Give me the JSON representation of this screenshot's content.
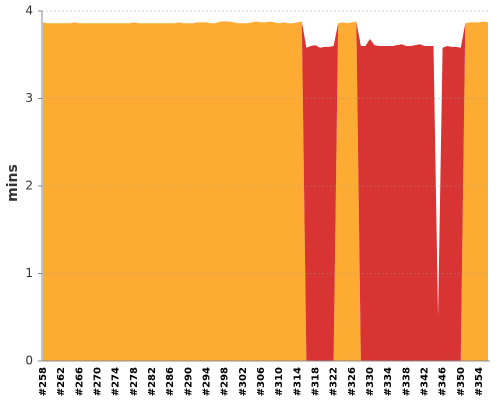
{
  "chart_data": {
    "type": "area",
    "stacked": true,
    "y_label": "mins",
    "categories": [
      "#258",
      null,
      null,
      null,
      "#262",
      null,
      null,
      null,
      "#266",
      null,
      null,
      null,
      "#270",
      null,
      null,
      null,
      "#274",
      null,
      null,
      null,
      "#278",
      null,
      null,
      null,
      "#282",
      null,
      null,
      null,
      "#286",
      null,
      null,
      null,
      "#290",
      null,
      null,
      null,
      "#294",
      null,
      null,
      null,
      "#298",
      null,
      null,
      null,
      "#302",
      null,
      null,
      null,
      "#306",
      null,
      null,
      null,
      "#310",
      null,
      null,
      null,
      "#314",
      null,
      null,
      null,
      "#318",
      null,
      null,
      null,
      "#322",
      null,
      null,
      null,
      "#326",
      null,
      null,
      null,
      "#330",
      null,
      null,
      null,
      "#334",
      null,
      null,
      null,
      "#338",
      null,
      null,
      null,
      "#342",
      null,
      null,
      null,
      "#346",
      null,
      null,
      null,
      "#350",
      null,
      null,
      null,
      "#354",
      null,
      null
    ],
    "series": [
      {
        "color": "#fdab32",
        "values": [
          3.87,
          3.86,
          3.86,
          3.86,
          3.86,
          3.86,
          3.86,
          3.87,
          3.86,
          3.86,
          3.86,
          3.86,
          3.86,
          3.86,
          3.86,
          3.86,
          3.86,
          3.86,
          3.86,
          3.86,
          3.87,
          3.86,
          3.86,
          3.86,
          3.86,
          3.86,
          3.86,
          3.86,
          3.86,
          3.86,
          3.87,
          3.86,
          3.86,
          3.86,
          3.87,
          3.87,
          3.87,
          3.86,
          3.86,
          3.88,
          3.88,
          3.88,
          3.87,
          3.86,
          3.86,
          3.86,
          3.87,
          3.88,
          3.87,
          3.87,
          3.88,
          3.87,
          3.86,
          3.87,
          3.86,
          3.86,
          3.87,
          3.88,
          0,
          0,
          0,
          0,
          0,
          0,
          0,
          3.86,
          3.87,
          3.86,
          3.87,
          3.88,
          0,
          0,
          0,
          0,
          0,
          0,
          0,
          0,
          0,
          0,
          0,
          0,
          0,
          0,
          0,
          0,
          0,
          0,
          0,
          0,
          0,
          0,
          0,
          3.86,
          3.87,
          3.87,
          3.87,
          3.88,
          3.87
        ]
      },
      {
        "color": "#d93434",
        "values": [
          0,
          0,
          0,
          0,
          0,
          0,
          0,
          0,
          0,
          0,
          0,
          0,
          0,
          0,
          0,
          0,
          0,
          0,
          0,
          0,
          0,
          0,
          0,
          0,
          0,
          0,
          0,
          0,
          0,
          0,
          0,
          0,
          0,
          0,
          0,
          0,
          0,
          0,
          0,
          0,
          0,
          0,
          0,
          0,
          0,
          0,
          0,
          0,
          0,
          0,
          0,
          0,
          0,
          0,
          0,
          0,
          0,
          0,
          3.58,
          3.6,
          3.61,
          3.58,
          3.59,
          3.59,
          3.6,
          0,
          0,
          0,
          0,
          0,
          3.6,
          3.6,
          3.68,
          3.61,
          3.6,
          3.6,
          3.6,
          3.6,
          3.61,
          3.62,
          3.6,
          3.6,
          3.61,
          3.62,
          3.6,
          3.6,
          3.6,
          0.5,
          3.58,
          3.6,
          3.59,
          3.59,
          3.58,
          0,
          0,
          0,
          0,
          0,
          0
        ]
      }
    ],
    "ylim": [
      0,
      4
    ],
    "yticks": [
      0,
      1,
      2,
      3,
      4
    ],
    "grid": true
  }
}
